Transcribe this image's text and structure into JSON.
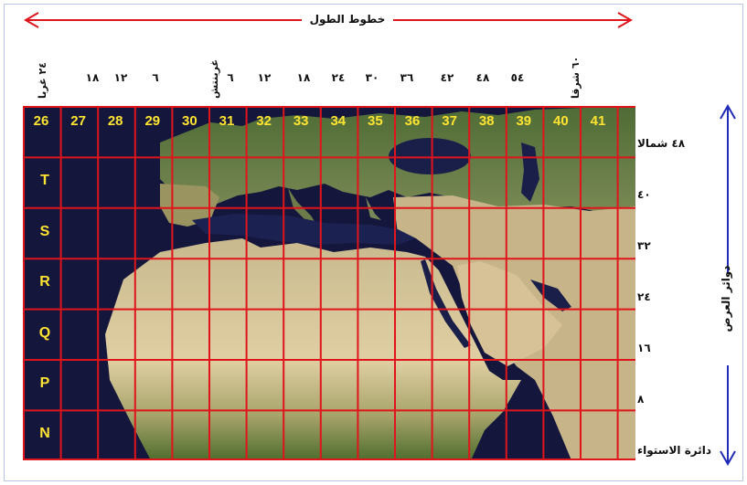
{
  "map": {
    "horizontal_title": "خطوط الطول",
    "vertical_title": "دوائر العرض",
    "longitude_top_labels": [
      "١٨",
      "١٢",
      "٦",
      "٦",
      "١٢",
      "١٨",
      "٢٤",
      "٣٠",
      "٣٦",
      "٤٢",
      "٤٨",
      "٥٤"
    ],
    "longitude_rotated_labels": [
      "٢٤ غربا",
      "غرينتش",
      "٦٠ شرقا"
    ],
    "zone_numbers": [
      "26",
      "27",
      "28",
      "29",
      "30",
      "31",
      "32",
      "33",
      "34",
      "35",
      "36",
      "37",
      "38",
      "39",
      "40",
      "41"
    ],
    "band_letters": [
      "T",
      "S",
      "R",
      "Q",
      "P",
      "N"
    ],
    "latitude_labels": [
      "٤٨ شمالا",
      "٤٠",
      "٣٢",
      "٢٤",
      "١٦",
      "٨",
      "دائرة الاستواء"
    ],
    "colors": {
      "grid": "#e0141b",
      "arrow_horizontal": "#e0141b",
      "arrow_vertical": "#1f2bb5",
      "ocean": "#14163c",
      "zone_text": "#ffe431",
      "desert": "#ddc9a0",
      "vegetation": "#5f7a3a"
    }
  }
}
